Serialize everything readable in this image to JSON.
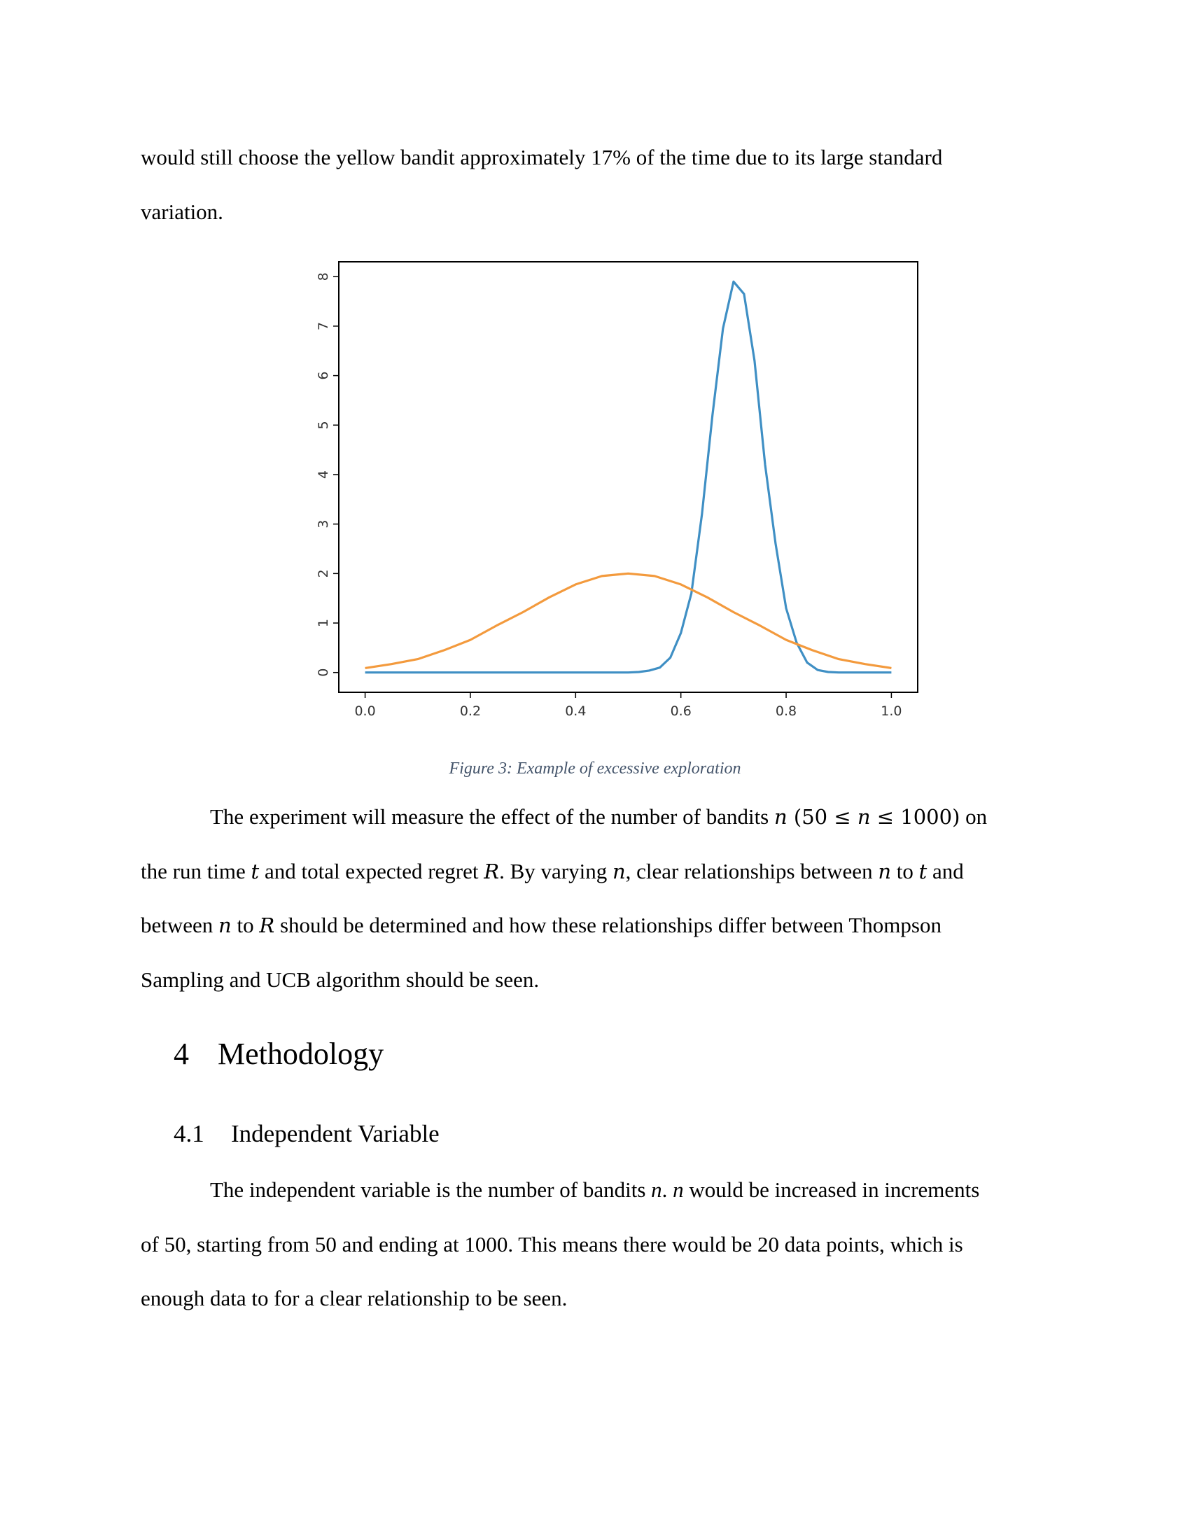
{
  "para1": {
    "line1": "would still choose the yellow bandit approximately 17% of the time due to its large standard",
    "line2": "variation."
  },
  "chart_data": {
    "type": "line",
    "xlim": [
      -0.05,
      1.05
    ],
    "ylim": [
      -0.4,
      8.3
    ],
    "xticks": [
      "0.0",
      "0.2",
      "0.4",
      "0.6",
      "0.8",
      "1.0"
    ],
    "yticks": [
      "0",
      "1",
      "2",
      "3",
      "4",
      "5",
      "6",
      "7",
      "8"
    ],
    "grid": false,
    "colors": {
      "blue": "#3f8fc4",
      "orange": "#f39a3d"
    },
    "series": [
      {
        "color": "#3f8fc4",
        "x": [
          0.0,
          0.5,
          0.52,
          0.54,
          0.56,
          0.58,
          0.6,
          0.62,
          0.64,
          0.66,
          0.68,
          0.7,
          0.72,
          0.74,
          0.76,
          0.78,
          0.8,
          0.82,
          0.84,
          0.86,
          0.88,
          0.9,
          0.92,
          1.0
        ],
        "values": [
          0.0,
          0.0,
          0.01,
          0.04,
          0.1,
          0.3,
          0.8,
          1.6,
          3.2,
          5.2,
          6.95,
          7.9,
          7.65,
          6.3,
          4.2,
          2.6,
          1.3,
          0.6,
          0.2,
          0.05,
          0.01,
          0.0,
          0.0,
          0.0
        ]
      },
      {
        "color": "#f39a3d",
        "x": [
          0.0,
          0.05,
          0.1,
          0.15,
          0.2,
          0.25,
          0.3,
          0.35,
          0.4,
          0.45,
          0.5,
          0.55,
          0.6,
          0.65,
          0.7,
          0.75,
          0.8,
          0.85,
          0.9,
          0.95,
          1.0
        ],
        "values": [
          0.09,
          0.17,
          0.27,
          0.45,
          0.66,
          0.95,
          1.22,
          1.52,
          1.78,
          1.95,
          2.0,
          1.95,
          1.78,
          1.52,
          1.22,
          0.95,
          0.66,
          0.45,
          0.27,
          0.17,
          0.09
        ]
      }
    ]
  },
  "caption": "Figure 3: Example of excessive exploration",
  "para2": {
    "l1a": "The experiment will measure the effect of the number of bandits ",
    "n": "n",
    "l1b": " (50 ≤ ",
    "l1c": " ≤ 1000)",
    "l1d": " on",
    "l2a": "the run time ",
    "t": "t",
    "l2b": " and total expected regret ",
    "R": "R",
    "l2c": ". By varying ",
    "l2d": ", clear relationships between ",
    "l2e": " to ",
    "l2f": " and",
    "l3a": "between ",
    "l3b": " to ",
    "l3c": " should be determined and how these relationships differ between Thompson",
    "l4": "Sampling and UCB algorithm should be seen."
  },
  "heading1": {
    "num": "4",
    "title": "Methodology"
  },
  "heading2": {
    "num": "4.1",
    "title": "Independent Variable"
  },
  "para3": {
    "l1a": "The independent variable is the number of bandits ",
    "l1b": " would be increased in increments",
    "l2": "of 50, starting from 50 and ending at 1000. This means there would be 20 data points, which is",
    "l3": "enough data to for a clear relationship to be seen."
  }
}
